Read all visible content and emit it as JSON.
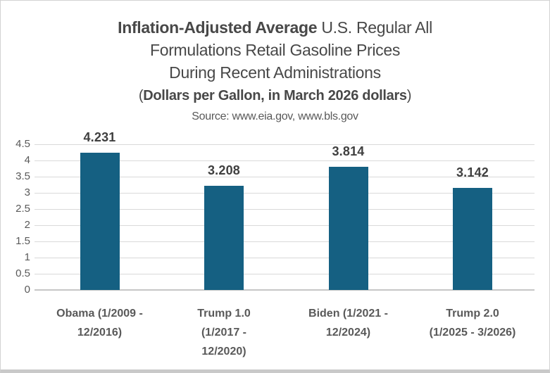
{
  "window": {
    "background": "#ffffff",
    "border_color": "#d2d2d2",
    "bottom_strip_color": "#c9c9c9"
  },
  "title": {
    "line1_bold": "Inflation-Adjusted Average",
    "line1_rest": " U.S. Regular All",
    "line2": "Formulations Retail Gasoline Prices",
    "line3": "During Recent Administrations",
    "subtitle_open_paren": "(",
    "subtitle_bold": "Dollars per Gallon, in March 2026 dollars",
    "subtitle_close_paren": ")",
    "source": "Source: www.eia.gov, www.bls.gov"
  },
  "chart_data": {
    "type": "bar",
    "title": "Inflation-Adjusted Average U.S. Regular All Formulations Retail Gasoline Prices During Recent Administrations",
    "subtitle": "(Dollars per Gallon, in March 2026 dollars)",
    "source": "Source: www.eia.gov, www.bls.gov",
    "categories": [
      "Obama (1/2009 - 12/2016)",
      "Trump 1.0 (1/2017 - 12/2020)",
      "Biden (1/2021 - 12/2024)",
      "Trump 2.0 (1/2025 - 3/2026)"
    ],
    "category_lines": [
      [
        "Obama (1/2009 -",
        "12/2016)"
      ],
      [
        "Trump 1.0",
        "(1/2017 -",
        "12/2020)"
      ],
      [
        "Biden (1/2021 -",
        "12/2024)"
      ],
      [
        "Trump 2.0",
        "(1/2025 - 3/2026)"
      ]
    ],
    "values": [
      4.231,
      3.208,
      3.814,
      3.142
    ],
    "value_labels": [
      "4.231",
      "3.208",
      "3.814",
      "3.142"
    ],
    "xlabel": "",
    "ylabel": "",
    "ylim": [
      0,
      4.5
    ],
    "ytick_step": 0.5,
    "ytick_labels": [
      "4.5",
      "4",
      "3.5",
      "3",
      "2.5",
      "2",
      "1.5",
      "1",
      "0.5",
      "0"
    ],
    "grid": true,
    "legend_position": "none",
    "bar_color": "#156082",
    "gridline_color": "#d9d9d9",
    "axis_line_color": "#c6c6c6",
    "tick_label_color": "#595959",
    "value_label_color": "#3f3f3f",
    "category_label_color": "#595959"
  }
}
